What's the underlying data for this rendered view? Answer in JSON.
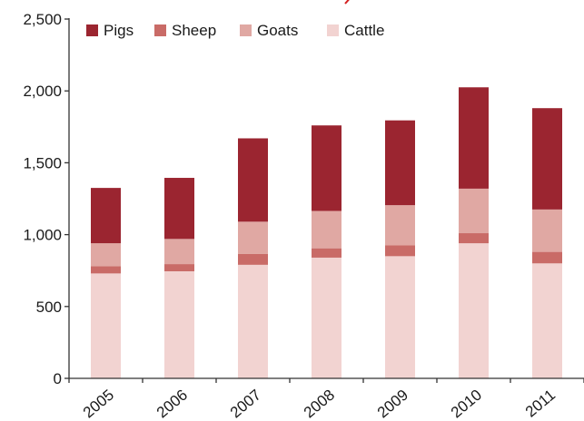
{
  "chart_data": {
    "type": "bar",
    "stacked": true,
    "categories": [
      "2005",
      "2006",
      "2007",
      "2008",
      "2009",
      "2010",
      "2011"
    ],
    "series": [
      {
        "name": "Cattle",
        "color": "#f2d3d1",
        "values": [
          730,
          745,
          790,
          840,
          850,
          940,
          800
        ]
      },
      {
        "name": "Sheep",
        "color": "#c96b67",
        "values": [
          50,
          50,
          75,
          65,
          75,
          70,
          80
        ]
      },
      {
        "name": "Goats",
        "color": "#e0a8a3",
        "values": [
          160,
          175,
          225,
          260,
          280,
          310,
          295
        ]
      },
      {
        "name": "Pigs",
        "color": "#9b2530",
        "values": [
          385,
          425,
          580,
          595,
          590,
          705,
          705
        ]
      }
    ],
    "legend_order": [
      "Pigs",
      "Sheep",
      "Goats",
      "Cattle"
    ],
    "yticks": [
      "0",
      "500",
      "1,000",
      "1,500",
      "2,000",
      "2,500"
    ],
    "ylim": [
      0,
      2500
    ],
    "legend_position": "top-left",
    "grid": false,
    "title": "",
    "xlabel": "",
    "ylabel": ""
  }
}
